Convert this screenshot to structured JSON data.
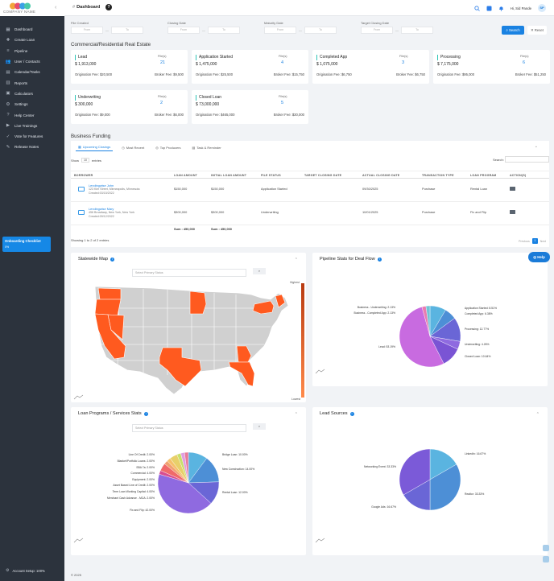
{
  "sidebar": {
    "logo_text": "COMPANY NAME",
    "collapse_icon": "chevron-left-icon",
    "items": [
      {
        "label": "Dashboard",
        "icon": "dashboard-icon"
      },
      {
        "label": "Create Loan",
        "icon": "create-loan-icon"
      },
      {
        "label": "Pipeline",
        "icon": "pipeline-icon"
      },
      {
        "label": "User / Contacts",
        "icon": "users-icon"
      },
      {
        "label": "Calendar/Tasks",
        "icon": "calendar-icon"
      },
      {
        "label": "Reports",
        "icon": "reports-icon"
      },
      {
        "label": "Calculators",
        "icon": "calculator-icon"
      },
      {
        "label": "Settings",
        "icon": "settings-icon"
      },
      {
        "label": "Help Center",
        "icon": "help-icon"
      },
      {
        "label": "Live Trainings",
        "icon": "training-icon"
      },
      {
        "label": "Vote for Features",
        "icon": "vote-icon"
      },
      {
        "label": "Release Notes",
        "icon": "notes-icon"
      }
    ],
    "onboarding": {
      "title": "Onboarding Checklist",
      "percent": "0%"
    },
    "account_setup": "Account Setup: 100%"
  },
  "topbar": {
    "title": "Dashboard",
    "help_glyph": "?",
    "greeting": "Hi, Sid Pande",
    "avatar_initials": "SP"
  },
  "filters": [
    {
      "label": "File Created",
      "from": "From",
      "to": "To"
    },
    {
      "label": "Closing Date",
      "from": "From",
      "to": "To"
    },
    {
      "label": "Maturity Date",
      "from": "From",
      "to": "To"
    },
    {
      "label": "Target Closing Date",
      "from": "From",
      "to": "To"
    }
  ],
  "buttons": {
    "search": "Search",
    "reset": "Reset"
  },
  "cre_title": "Commercial/Residential Real Estate",
  "cards": [
    {
      "name": "Lead",
      "amount": "$ 1,913,000",
      "files_label": "File(s)",
      "count": "21",
      "orig": "Origination Fee: $20,500",
      "broker": "Broker Fee: $9,500"
    },
    {
      "name": "Application Started",
      "amount": "$ 1,475,000",
      "files_label": "File(s)",
      "count": "4",
      "orig": "Origination Fee: $25,500",
      "broker": "Broker Fee: $15,750"
    },
    {
      "name": "Completed App",
      "amount": "$ 1,075,000",
      "files_label": "File(s)",
      "count": "3",
      "orig": "Origination Fee: $6,750",
      "broker": "Broker Fee: $6,750"
    },
    {
      "name": "Processing",
      "amount": "$ 7,175,000",
      "files_label": "File(s)",
      "count": "6",
      "orig": "Origination Fee: $95,000",
      "broker": "Broker Fee: $51,250"
    },
    {
      "name": "Underwriting",
      "amount": "$ 300,000",
      "files_label": "File(s)",
      "count": "2",
      "orig": "Origination Fee: $9,000",
      "broker": "Broker Fee: $6,000"
    },
    {
      "name": "Closed Loan",
      "amount": "$ 73,000,000",
      "files_label": "File(s)",
      "count": "5",
      "orig": "Origination Fee: $465,000",
      "broker": "Broker Fee: $30,000"
    }
  ],
  "bf": {
    "title": "Business Funding",
    "tabs": [
      "Upcoming Closings",
      "Most Recent",
      "Top Producers",
      "Task & Reminder"
    ],
    "show": "Show",
    "show_value": "10",
    "entries": "entries",
    "search_label": "Search:",
    "columns": [
      "BORROWER",
      "LOAN AMOUNT",
      "INITIAL LOAN AMOUNT",
      "FILE STATUS",
      "TARGET CLOSING DATE",
      "ACTUAL CLOSING DATE",
      "TRANSACTION TYPE",
      "LOAN PROGRAM",
      "ACTION(S)"
    ],
    "rows": [
      {
        "name": "Lendingwise John",
        "addr": "123 Kim Street, Minneapolis, Minnesota",
        "created": "Created:03/15/2022",
        "loan": "$150,000",
        "initial": "$150,000",
        "status": "Application Started",
        "target": "",
        "actual": "09/30/2025",
        "type": "Purchase",
        "program": "Rental Loan"
      },
      {
        "name": "Lendingwise Mary",
        "addr": "456 Broadway, New York, New York",
        "created": "Created:09/12/2022",
        "loan": "$300,000",
        "initial": "$300,000",
        "status": "Underwriting",
        "target": "",
        "actual": "10/01/2025",
        "type": "Purchase",
        "program": "Fix and Flip"
      }
    ],
    "sum_loan": "Sum : 450,000",
    "sum_initial": "Sum : 450,000",
    "showing": "Showing 1 to 2 of 2 entries",
    "prev": "Previous",
    "page": "1",
    "next": "Next"
  },
  "panels": {
    "statewide": {
      "title": "Statewide Map",
      "select": "Select Primary Status",
      "highest": "Highest",
      "lowest": "Lowest"
    },
    "pipeline": {
      "title": "Pipeline Stats for Deal Flow"
    },
    "programs": {
      "title": "Loan Programs / Services Stats",
      "select": "Select Primary Status"
    },
    "sources": {
      "title": "Lead Sources"
    }
  },
  "help": "Help",
  "footer": "© 2025",
  "colors": {
    "sidebar": "#2c333d",
    "accent": "#1a82e2",
    "map_high": "#ff5a1f",
    "map_base": "#d0d0d0"
  },
  "chart_data": [
    {
      "type": "pie",
      "title": "Pipeline Stats for Deal Flow",
      "categories": [
        "Application Started",
        "Completed App",
        "Processing",
        "Underwriting",
        "Closed Loan",
        "Lead",
        "Business - Completed App",
        "Business - Underwriting"
      ],
      "values": [
        8.51,
        6.38,
        12.77,
        4.26,
        10.64,
        53.19,
        2.13,
        2.13
      ],
      "labels": [
        "Application Started: 8.51%",
        "Completed App: 6.38%",
        "Processing: 12.77%",
        "Underwriting: 4.26%",
        "Closed Loan: 10.64%",
        "Lead: 53.19%",
        "Business - Completed App: 2.13%",
        "Business - Underwriting: 2.13%"
      ],
      "colors": [
        "#5ab4e0",
        "#4d8fd6",
        "#6a66d6",
        "#8f6ae0",
        "#7a54d4",
        "#c86be0",
        "#e87cb0",
        "#6fc4d6"
      ]
    },
    {
      "type": "pie",
      "title": "Loan Programs / Services Stats",
      "categories": [
        "Bridge Loan",
        "New Construction",
        "Rental Loan",
        "Fix and Flip",
        "Merchant Cash Advance - MCA",
        "Term Loan Working Capital",
        "Asset Based Line of Credit",
        "Equipment",
        "Commercial",
        "SBA 7a",
        "Blanket/Portfolio Loans",
        "Line Of Credit"
      ],
      "values": [
        10.0,
        14.0,
        12.0,
        42.0,
        2.0,
        4.0,
        2.0,
        2.0,
        4.0,
        2.0,
        2.0,
        2.0
      ],
      "labels": [
        "Bridge Loan: 10.00%",
        "New Construction: 14.00%",
        "Rental Loan: 12.00%",
        "Fix and Flip: 42.00%",
        "Merchant Cash Advance - MCA: 2.00%",
        "Term Loan Working Capital: 4.00%",
        "Asset Based Line of Credit: 2.00%",
        "Equipment: 2.00%",
        "Commercial: 4.00%",
        "SBA 7a: 2.00%",
        "Blanket/Portfolio Loans: 2.00%",
        "Line Of Credit: 2.00%"
      ],
      "colors": [
        "#5ab4e0",
        "#4d8fd6",
        "#6a66d6",
        "#8f6ae0",
        "#d84d8f",
        "#f06a6a",
        "#f0a070",
        "#f5c06a",
        "#e8d06a",
        "#c8e06a",
        "#e0a0e0",
        "#e87c9a"
      ]
    },
    {
      "type": "pie",
      "title": "Lead Sources",
      "categories": [
        "LinkedIn",
        "Realtor",
        "Google Ads",
        "Networking Event"
      ],
      "values": [
        16.67,
        33.33,
        16.67,
        33.33
      ],
      "labels": [
        "LinkedIn: 16.67%",
        "Realtor: 33.33%",
        "Google Ads: 16.67%",
        "Networking Event: 33.33%"
      ],
      "colors": [
        "#5ab4e0",
        "#4d8fd6",
        "#6a66d6",
        "#7b5ad8"
      ]
    }
  ]
}
